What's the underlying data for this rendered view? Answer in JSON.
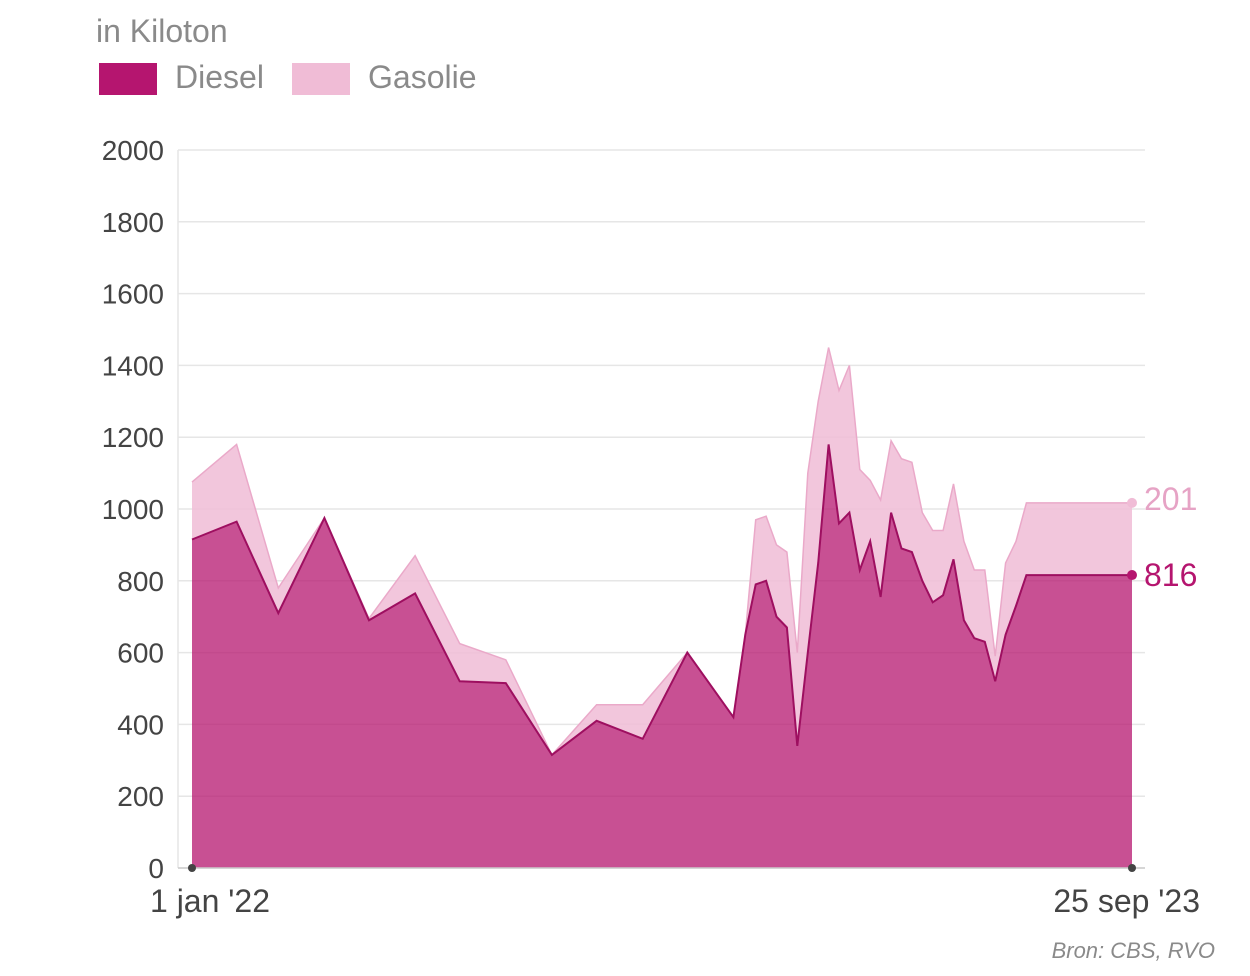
{
  "unit": "in Kiloton",
  "legend": [
    {
      "label": "Diesel",
      "color": "#b5156f"
    },
    {
      "label": "Gasolie",
      "color": "#f0bcd6"
    }
  ],
  "source": "Bron: CBS, RVO",
  "x_start_label": "1 jan '22",
  "x_end_label": "25 sep '23",
  "end_labels": {
    "diesel": "816",
    "gasolie": "201"
  },
  "chart_data": {
    "type": "area",
    "stacked": true,
    "ylim": [
      0,
      2000
    ],
    "yticks": [
      0,
      200,
      400,
      600,
      800,
      1000,
      1200,
      1400,
      1600,
      1800,
      2000
    ],
    "grid": true,
    "legend_position": "top-left",
    "x": [
      "2022-01-01",
      "2022-01-31",
      "2022-02-28",
      "2022-03-31",
      "2022-04-30",
      "2022-05-31",
      "2022-06-30",
      "2022-07-31",
      "2022-08-31",
      "2022-09-30",
      "2022-10-31",
      "2022-11-30",
      "2022-12-31",
      "2023-01-08",
      "2023-01-15",
      "2023-01-22",
      "2023-01-29",
      "2023-02-05",
      "2023-02-12",
      "2023-02-19",
      "2023-02-26",
      "2023-03-05",
      "2023-03-12",
      "2023-03-19",
      "2023-03-26",
      "2023-04-02",
      "2023-04-09",
      "2023-04-16",
      "2023-04-23",
      "2023-04-30",
      "2023-05-07",
      "2023-05-14",
      "2023-05-21",
      "2023-05-28",
      "2023-06-04",
      "2023-06-11",
      "2023-06-18",
      "2023-06-25",
      "2023-07-02",
      "2023-07-09",
      "2023-07-16",
      "2023-07-23",
      "2023-07-30",
      "2023-08-06",
      "2023-08-13",
      "2023-08-20",
      "2023-08-27",
      "2023-09-03",
      "2023-09-10",
      "2023-09-17",
      "2023-09-25"
    ],
    "series": [
      {
        "name": "Diesel",
        "color": "#b5156f",
        "values": [
          915,
          965,
          710,
          975,
          690,
          765,
          520,
          515,
          315,
          410,
          360,
          600,
          420,
          650,
          790,
          800,
          700,
          670,
          340,
          600,
          850,
          1180,
          960,
          990,
          830,
          910,
          755,
          990,
          890,
          880,
          800,
          740,
          760,
          860,
          690,
          640,
          630,
          520,
          650,
          730,
          816,
          816,
          816,
          816,
          816,
          816,
          816,
          816,
          816,
          816,
          816
        ]
      },
      {
        "name": "Gasolie",
        "color": "#f0bcd6",
        "values": [
          160,
          215,
          70,
          0,
          5,
          105,
          105,
          65,
          0,
          45,
          95,
          0,
          0,
          0,
          180,
          180,
          200,
          210,
          260,
          500,
          450,
          270,
          370,
          410,
          280,
          170,
          270,
          200,
          250,
          250,
          190,
          200,
          180,
          210,
          220,
          190,
          200,
          70,
          200,
          180,
          201,
          201,
          201,
          201,
          201,
          201,
          201,
          201,
          201,
          201,
          201
        ]
      }
    ]
  }
}
